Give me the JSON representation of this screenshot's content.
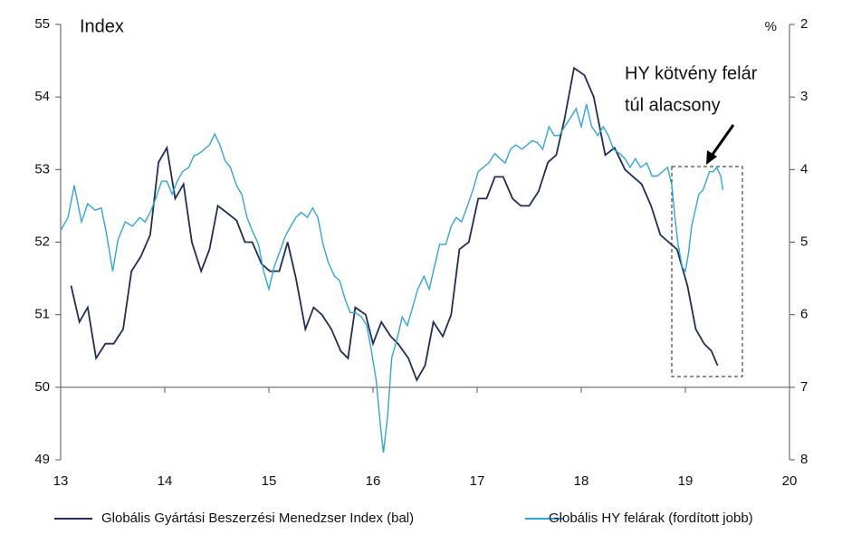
{
  "chart_data": {
    "type": "line",
    "title": "Index",
    "y2_unit": "%",
    "annotation": [
      "HY kötvény felár",
      "túl alacsony"
    ],
    "xlim": [
      13,
      20
    ],
    "xticks": [
      13,
      14,
      15,
      16,
      17,
      18,
      19,
      20
    ],
    "ylim": [
      49,
      55
    ],
    "yticks": [
      49,
      50,
      51,
      52,
      53,
      54,
      55
    ],
    "y2lim": [
      2,
      8
    ],
    "y2ticks": [
      2,
      3,
      4,
      5,
      6,
      7,
      8
    ],
    "y2_inverted": true,
    "x_axis_crosses": 50,
    "grid": false,
    "legend": "bottom",
    "series": [
      {
        "name": "Globális Gyártási Beszerzési Menedzser Index (bal)",
        "color": "#1f2d5a",
        "axis": "y",
        "x": [
          13.1,
          13.18,
          13.26,
          13.34,
          13.43,
          13.51,
          13.6,
          13.68,
          13.77,
          13.86,
          13.94,
          14.02,
          14.1,
          14.18,
          14.26,
          14.35,
          14.43,
          14.51,
          14.6,
          14.69,
          14.77,
          14.84,
          14.93,
          15.01,
          15.1,
          15.18,
          15.26,
          15.35,
          15.43,
          15.51,
          15.6,
          15.69,
          15.76,
          15.83,
          15.93,
          16.0,
          16.08,
          16.17,
          16.24,
          16.34,
          16.42,
          16.5,
          16.58,
          16.67,
          16.75,
          16.83,
          16.92,
          17.01,
          17.09,
          17.17,
          17.25,
          17.34,
          17.42,
          17.5,
          17.59,
          17.68,
          17.76,
          17.84,
          17.93,
          18.03,
          18.12,
          18.23,
          18.32,
          18.42,
          18.5,
          18.58,
          18.67,
          18.76,
          18.84,
          18.92,
          19.02,
          19.1,
          19.18,
          19.25,
          19.31
        ],
        "values": [
          51.4,
          50.9,
          51.1,
          50.4,
          50.6,
          50.6,
          50.8,
          51.6,
          51.8,
          52.1,
          53.1,
          53.3,
          52.6,
          52.8,
          52.0,
          51.6,
          51.9,
          52.5,
          52.4,
          52.3,
          52.0,
          52.0,
          51.7,
          51.6,
          51.6,
          52.0,
          51.5,
          50.8,
          51.1,
          51.0,
          50.8,
          50.5,
          50.4,
          51.1,
          51.0,
          50.6,
          50.9,
          50.7,
          50.6,
          50.4,
          50.1,
          50.3,
          50.9,
          50.7,
          51.0,
          51.9,
          52.0,
          52.6,
          52.6,
          52.9,
          52.9,
          52.6,
          52.5,
          52.5,
          52.7,
          53.1,
          53.2,
          53.7,
          54.4,
          54.3,
          54.0,
          53.2,
          53.3,
          53.0,
          52.9,
          52.8,
          52.5,
          52.1,
          52.0,
          51.9,
          51.4,
          50.8,
          50.6,
          50.5,
          50.3
        ]
      },
      {
        "name": "Globális HY felárak (fordított jobb)",
        "color": "#2ea6dd",
        "axis": "y2",
        "x": [
          13.0,
          13.07,
          13.13,
          13.2,
          13.26,
          13.33,
          13.39,
          13.44,
          13.5,
          13.55,
          13.62,
          13.69,
          13.76,
          13.81,
          13.86,
          13.91,
          13.97,
          14.02,
          14.07,
          14.12,
          14.17,
          14.23,
          14.28,
          14.33,
          14.38,
          14.43,
          14.48,
          14.53,
          14.58,
          14.63,
          14.69,
          14.74,
          14.79,
          14.84,
          14.9,
          14.95,
          15.0,
          15.05,
          15.1,
          15.16,
          15.21,
          15.26,
          15.31,
          15.37,
          15.42,
          15.47,
          15.52,
          15.57,
          15.63,
          15.68,
          15.73,
          15.78,
          15.83,
          15.89,
          15.94,
          15.98,
          16.03,
          16.07,
          16.1,
          16.14,
          16.18,
          16.23,
          16.28,
          16.33,
          16.38,
          16.43,
          16.49,
          16.54,
          16.59,
          16.64,
          16.7,
          16.75,
          16.8,
          16.85,
          16.9,
          16.96,
          17.01,
          17.06,
          17.11,
          17.17,
          17.22,
          17.27,
          17.32,
          17.37,
          17.43,
          17.48,
          17.53,
          17.58,
          17.63,
          17.69,
          17.74,
          17.79,
          17.84,
          17.9,
          17.95,
          18.0,
          18.05,
          18.1,
          18.16,
          18.21,
          18.26,
          18.31,
          18.37,
          18.42,
          18.47,
          18.52,
          18.57,
          18.63,
          18.68,
          18.73,
          18.78,
          18.83,
          18.87,
          18.9,
          18.93,
          18.97,
          19.0,
          19.03,
          19.06,
          19.1,
          19.13,
          19.17,
          19.2,
          19.23,
          19.27,
          19.3,
          19.34,
          19.36
        ],
        "values": [
          4.84,
          4.66,
          4.22,
          4.72,
          4.47,
          4.56,
          4.53,
          4.88,
          5.4,
          4.97,
          4.72,
          4.78,
          4.66,
          4.72,
          4.59,
          4.41,
          4.16,
          4.16,
          4.34,
          4.16,
          4.03,
          3.97,
          3.81,
          3.78,
          3.72,
          3.66,
          3.51,
          3.66,
          3.88,
          3.97,
          4.22,
          4.34,
          4.66,
          4.84,
          5.03,
          5.4,
          5.65,
          5.34,
          5.15,
          4.91,
          4.78,
          4.66,
          4.59,
          4.66,
          4.53,
          4.66,
          5.03,
          5.28,
          5.47,
          5.53,
          5.78,
          5.97,
          5.97,
          6.03,
          6.15,
          6.46,
          6.9,
          7.52,
          7.9,
          7.4,
          6.59,
          6.34,
          6.03,
          6.15,
          5.9,
          5.65,
          5.47,
          5.65,
          5.34,
          5.03,
          5.03,
          4.78,
          4.66,
          4.72,
          4.53,
          4.28,
          4.03,
          3.97,
          3.91,
          3.78,
          3.85,
          3.91,
          3.72,
          3.66,
          3.72,
          3.66,
          3.6,
          3.63,
          3.72,
          3.41,
          3.53,
          3.53,
          3.41,
          3.28,
          3.16,
          3.41,
          3.1,
          3.41,
          3.53,
          3.41,
          3.53,
          3.72,
          3.78,
          3.85,
          3.97,
          3.85,
          3.97,
          3.91,
          4.09,
          4.09,
          4.03,
          3.97,
          4.22,
          4.66,
          5.03,
          5.34,
          5.4,
          5.15,
          4.78,
          4.53,
          4.34,
          4.28,
          4.16,
          4.03,
          4.03,
          3.97,
          4.09,
          4.28
        ]
      }
    ]
  }
}
